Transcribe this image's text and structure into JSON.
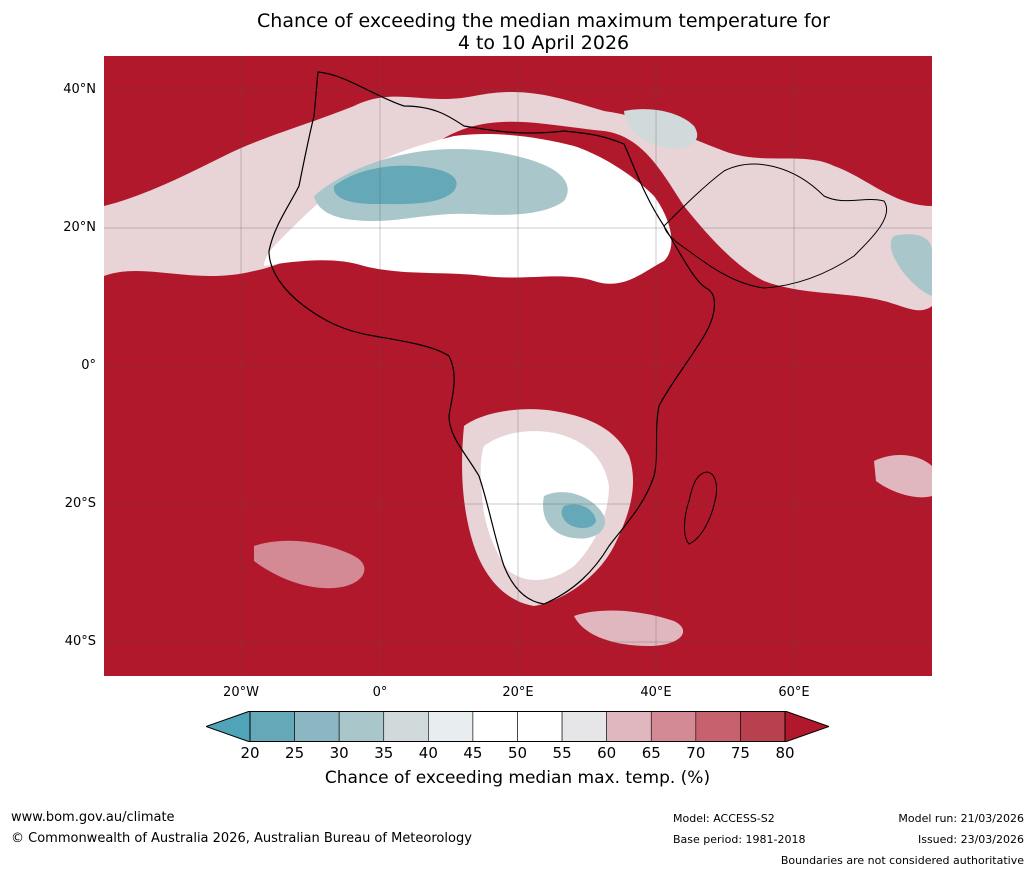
{
  "title": {
    "line1": "Chance of exceeding the median maximum temperature for",
    "line2": "4 to 10 April 2026"
  },
  "map": {
    "lat_labels": [
      "40°N",
      "20°N",
      "0°",
      "20°S",
      "40°S"
    ],
    "lon_labels": [
      "20°W",
      "0°",
      "20°E",
      "40°E",
      "60°E"
    ],
    "dominant_color": "#b2182b"
  },
  "colorbar": {
    "ticks": [
      "20",
      "25",
      "30",
      "35",
      "40",
      "45",
      "50",
      "55",
      "60",
      "65",
      "70",
      "75",
      "80"
    ],
    "low_extend_color": "#4fa4b7",
    "high_extend_color": "#b2182b",
    "bin_colors": [
      "#65a9b8",
      "#8bb7c3",
      "#a9c6ca",
      "#d0dadb",
      "#e8eef0",
      "#ffffff",
      "#ffffff",
      "#e6e6e8",
      "#e1b7bf",
      "#d48a95",
      "#c6616e",
      "#b9404e"
    ],
    "label": "Chance of exceeding median max. temp. (%)"
  },
  "footer": {
    "website": "www.bom.gov.au/climate",
    "copyright": "© Commonwealth of Australia 2026, Australian Bureau of Meteorology",
    "model": "Model: ACCESS-S2",
    "base_period": "Base period: 1981-2018",
    "model_run": "Model run: 21/03/2026",
    "issued": "Issued: 23/03/2026",
    "disclaimer": "Boundaries are not considered authoritative"
  }
}
